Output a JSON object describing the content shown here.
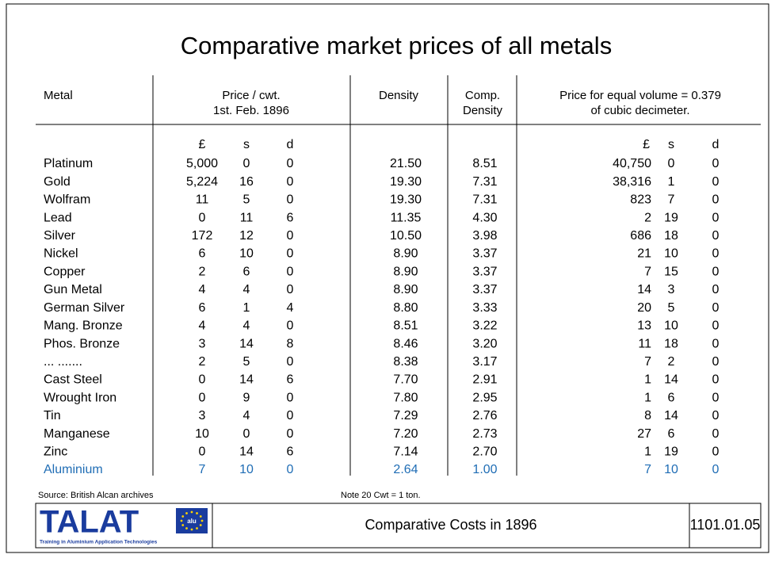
{
  "title": "Comparative market prices of all metals",
  "table": {
    "headers": [
      [
        "Metal"
      ],
      [
        "Price / cwt.",
        "1st. Feb. 1896"
      ],
      [
        "Density"
      ],
      [
        "Comp.",
        "Density"
      ],
      [
        "Price for equal volume = 0.379",
        "of cubic decimeter."
      ]
    ],
    "units": [
      "£",
      "s",
      "d",
      "£",
      "s",
      "d"
    ],
    "rows": [
      [
        "Platinum",
        "5,000",
        "0",
        "0",
        "21.50",
        "8.51",
        "40,750",
        "0",
        "0"
      ],
      [
        "Gold",
        "5,224",
        "16",
        "0",
        "19.30",
        "7.31",
        "38,316",
        "1",
        "0"
      ],
      [
        "Wolfram",
        "11",
        "5",
        "0",
        "19.30",
        "7.31",
        "823",
        "7",
        "0"
      ],
      [
        "Lead",
        "0",
        "11",
        "6",
        "11.35",
        "4.30",
        "2",
        "19",
        "0"
      ],
      [
        "Silver",
        "172",
        "12",
        "0",
        "10.50",
        "3.98",
        "686",
        "18",
        "0"
      ],
      [
        "Nickel",
        "6",
        "10",
        "0",
        "8.90",
        "3.37",
        "21",
        "10",
        "0"
      ],
      [
        "Copper",
        "2",
        "6",
        "0",
        "8.90",
        "3.37",
        "7",
        "15",
        "0"
      ],
      [
        "Gun Metal",
        "4",
        "4",
        "0",
        "8.90",
        "3.37",
        "14",
        "3",
        "0"
      ],
      [
        "German Silver",
        "6",
        "1",
        "4",
        "8.80",
        "3.33",
        "20",
        "5",
        "0"
      ],
      [
        "Mang. Bronze",
        "4",
        "4",
        "0",
        "8.51",
        "3.22",
        "13",
        "10",
        "0"
      ],
      [
        "Phos. Bronze",
        "3",
        "14",
        "8",
        "8.46",
        "3.20",
        "11",
        "18",
        "0"
      ],
      [
        "... .......",
        "2",
        "5",
        "0",
        "8.38",
        "3.17",
        "7",
        "2",
        "0"
      ],
      [
        "Cast Steel",
        "0",
        "14",
        "6",
        "7.70",
        "2.91",
        "1",
        "14",
        "0"
      ],
      [
        "Wrought Iron",
        "0",
        "9",
        "0",
        "7.80",
        "2.95",
        "1",
        "6",
        "0"
      ],
      [
        "Tin",
        "3",
        "4",
        "0",
        "7.29",
        "2.76",
        "8",
        "14",
        "0"
      ],
      [
        "Manganese",
        "10",
        "0",
        "0",
        "7.20",
        "2.73",
        "27",
        "6",
        "0"
      ],
      [
        "Zinc",
        "0",
        "14",
        "6",
        "7.14",
        "2.70",
        "1",
        "19",
        "0"
      ],
      [
        "Aluminium",
        "7",
        "10",
        "0",
        "2.64",
        "1.00",
        "7",
        "10",
        "0"
      ]
    ]
  },
  "source": "Source: British Alcan archives",
  "note": "Note 20 Cwt = 1 ton.",
  "footer": {
    "logo": "TALAT",
    "logo_badge": "alu",
    "tagline": "Training in Aluminium Application Technologies",
    "caption": "Comparative Costs in 1896",
    "code": "1101.01.05"
  }
}
